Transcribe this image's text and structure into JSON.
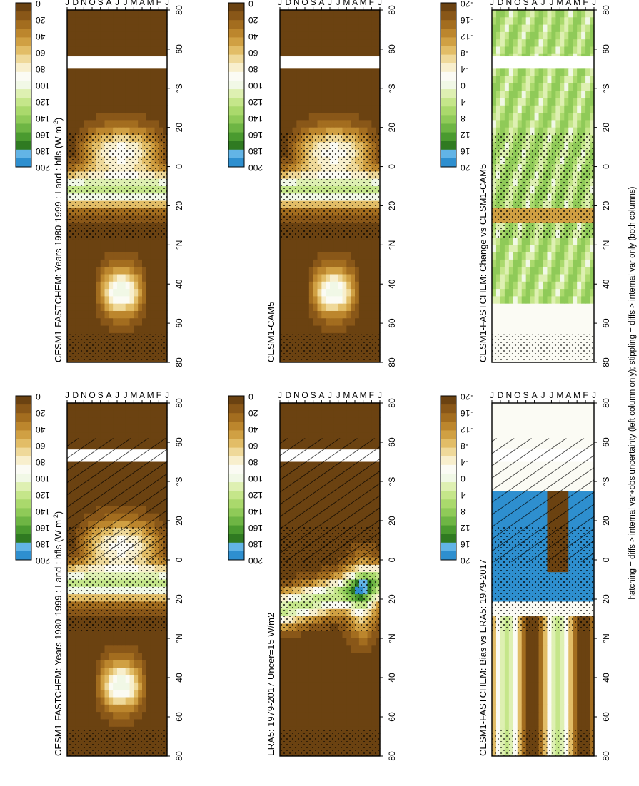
{
  "figure": {
    "footnote": "hatching = diffs > internal var+obs uncertainty (left column only); stippling = diffs > internal var only (both columns)",
    "colors": {
      "ramp": [
        "#2e8fcf",
        "#62b4e6",
        "#2f7a21",
        "#4a9a2f",
        "#6eb544",
        "#8fca58",
        "#aad96c",
        "#c5e68a",
        "#def0b2",
        "#f1f8e6",
        "#fbfbf4",
        "#f8efcd",
        "#efd99a",
        "#e2bd67",
        "#d0a043",
        "#bc862d",
        "#a36d1f",
        "#895718",
        "#6b4211"
      ],
      "land_white": "#ffffff",
      "hatch": "#000000"
    }
  },
  "chart_data": [
    {
      "panel": "left-top",
      "type": "heatmap",
      "title": "CESM1-FASTCHEM: Years 1980-1999 : Land : hfls (W m",
      "title_sup": "-2",
      "title_suffix": ")",
      "x": [
        "J",
        "F",
        "M",
        "A",
        "M",
        "J",
        "J",
        "A",
        "S",
        "O",
        "N",
        "D",
        "J"
      ],
      "y": [
        "80",
        "60",
        "40",
        "°N",
        "20",
        "0",
        "20",
        "°S",
        "60",
        "80"
      ],
      "colorbar": [
        "200",
        "180",
        "160",
        "140",
        "120",
        "100",
        "80",
        "60",
        "40",
        "20",
        "0"
      ],
      "field": "climatology",
      "hatching": true,
      "stippling": true
    },
    {
      "panel": "right-top",
      "type": "heatmap",
      "title": "CESM1-FASTCHEM: Years 1980-1999 : Land : hfls (W m",
      "title_sup": "-2",
      "title_suffix": ")",
      "x": [
        "J",
        "F",
        "M",
        "A",
        "M",
        "J",
        "J",
        "A",
        "S",
        "O",
        "N",
        "D",
        "J"
      ],
      "y": [
        "80",
        "60",
        "40",
        "°N",
        "20",
        "0",
        "20",
        "°S",
        "60",
        "80"
      ],
      "colorbar": [
        "200",
        "180",
        "160",
        "140",
        "120",
        "100",
        "80",
        "60",
        "40",
        "20",
        "0"
      ],
      "field": "climatology",
      "hatching": false,
      "stippling": true
    },
    {
      "panel": "left-middle",
      "type": "heatmap",
      "title": "ERA5: 1979-2017 Uncer=15 W/m2",
      "title_sup": "",
      "title_suffix": "",
      "x": [
        "J",
        "F",
        "M",
        "A",
        "M",
        "J",
        "J",
        "A",
        "S",
        "O",
        "N",
        "D",
        "J"
      ],
      "y": [
        "80",
        "60",
        "40",
        "°N",
        "20",
        "0",
        "20",
        "°S",
        "60",
        "80"
      ],
      "colorbar": [
        "200",
        "180",
        "160",
        "140",
        "120",
        "100",
        "80",
        "60",
        "40",
        "20",
        "0"
      ],
      "field": "obs",
      "hatching": true,
      "stippling": true
    },
    {
      "panel": "right-middle",
      "type": "heatmap",
      "title": "CESM1-CAM5",
      "title_sup": "",
      "title_suffix": "",
      "x": [
        "J",
        "F",
        "M",
        "A",
        "M",
        "J",
        "J",
        "A",
        "S",
        "O",
        "N",
        "D",
        "J"
      ],
      "y": [
        "80",
        "60",
        "40",
        "°N",
        "20",
        "0",
        "20",
        "°S",
        "60",
        "80"
      ],
      "colorbar": [
        "200",
        "180",
        "160",
        "140",
        "120",
        "100",
        "80",
        "60",
        "40",
        "20",
        "0"
      ],
      "field": "climatology",
      "hatching": false,
      "stippling": true
    },
    {
      "panel": "left-bottom",
      "type": "heatmap",
      "title": "CESM1-FASTCHEM: Bias vs ERA5: 1979-2017",
      "title_sup": "",
      "title_suffix": "",
      "x": [
        "J",
        "F",
        "M",
        "A",
        "M",
        "J",
        "J",
        "A",
        "S",
        "O",
        "N",
        "D",
        "J"
      ],
      "y": [
        "80",
        "60",
        "40",
        "°N",
        "20",
        "0",
        "20",
        "°S",
        "60",
        "80"
      ],
      "colorbar": [
        "20",
        "16",
        "12",
        "8",
        "4",
        "0",
        "-4",
        "-8",
        "-12",
        "-16",
        "-20"
      ],
      "field": "bias",
      "hatching": true,
      "stippling": true
    },
    {
      "panel": "right-bottom",
      "type": "heatmap",
      "title": "CESM1-FASTCHEM: Change vs CESM1-CAM5",
      "title_sup": "",
      "title_suffix": "",
      "x": [
        "J",
        "F",
        "M",
        "A",
        "M",
        "J",
        "J",
        "A",
        "S",
        "O",
        "N",
        "D",
        "J"
      ],
      "y": [
        "80",
        "60",
        "40",
        "°N",
        "20",
        "0",
        "20",
        "°S",
        "60",
        "80"
      ],
      "colorbar": [
        "20",
        "16",
        "12",
        "8",
        "4",
        "0",
        "-4",
        "-8",
        "-12",
        "-16",
        "-20"
      ],
      "field": "change",
      "hatching": false,
      "stippling": true
    }
  ]
}
